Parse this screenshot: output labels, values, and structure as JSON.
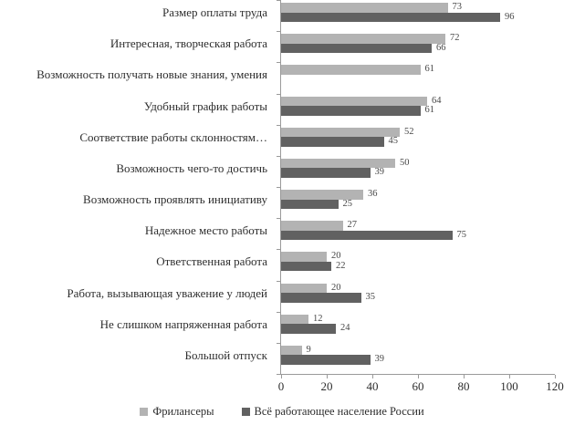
{
  "chart_data": {
    "type": "bar",
    "orientation": "horizontal",
    "title": "",
    "xlabel": "",
    "ylabel": "",
    "grid": false,
    "legend_position": "bottom",
    "value_labels": true,
    "xlim": [
      0,
      120
    ],
    "xticks": [
      0,
      20,
      40,
      60,
      80,
      100,
      120
    ],
    "axis_color": "#9a9a9a",
    "categories": [
      "Размер оплаты труда",
      "Интересная, творческая работа",
      "Возможность получать новые знания, умения",
      "Удобный график работы",
      "Соответствие работы склонностям…",
      "Возможность чего-то достичь",
      "Возможность проявлять инициативу",
      "Надежное место работы",
      "Ответственная работа",
      "Работа, вызывающая уважение у людей",
      "Не слишком напряженная работа",
      "Большой отпуск"
    ],
    "series": [
      {
        "name": "Фрилансеры",
        "color": "#b3b3b3",
        "values": [
          73,
          72,
          61,
          64,
          52,
          50,
          36,
          27,
          20,
          20,
          12,
          9
        ]
      },
      {
        "name": "Всё работающее население России",
        "color": "#616161",
        "values": [
          96,
          66,
          null,
          61,
          45,
          39,
          25,
          75,
          22,
          35,
          24,
          39
        ]
      }
    ]
  }
}
